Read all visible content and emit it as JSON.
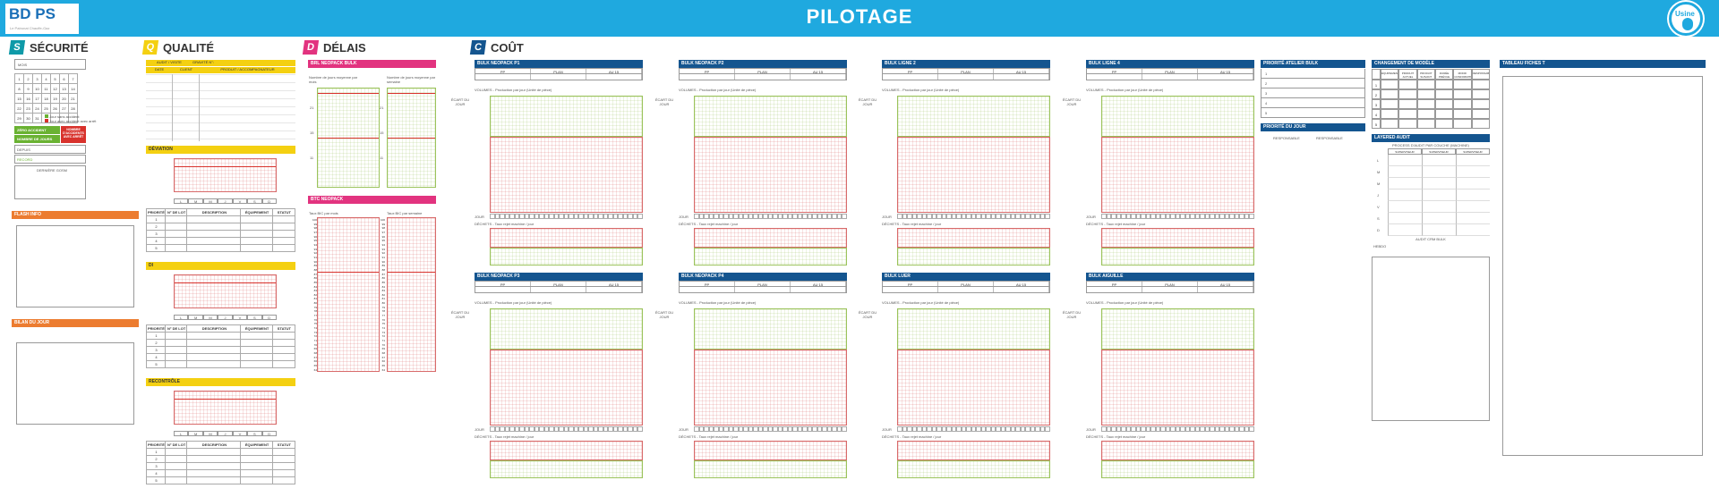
{
  "header": {
    "logo_text": "BD PS",
    "logo_sub": "Le Patronat Chauffe-Gaz",
    "title": "PILOTAGE",
    "usine_label": "Usine"
  },
  "securite": {
    "badge": "S",
    "title": "SÉCURITÉ",
    "color": "#0f9aa8",
    "mois_label": "MOIS",
    "calendar": [
      [
        "1",
        "2",
        "3",
        "4",
        "5",
        "6",
        "7"
      ],
      [
        "8",
        "9",
        "10",
        "11",
        "12",
        "13",
        "14"
      ],
      [
        "15",
        "16",
        "17",
        "18",
        "19",
        "20",
        "21"
      ],
      [
        "22",
        "23",
        "24",
        "25",
        "26",
        "27",
        "28"
      ],
      [
        "29",
        "30",
        "31",
        "",
        "",
        "",
        "",
        ""
      ]
    ],
    "legend": [
      "Jour sans accident",
      "Jour avec accident avec arrêt"
    ],
    "zero_accident": "ZÉRO ACCIDENT",
    "nombre_jours": "NOMBRE DE JOURS",
    "nombre_accidents": "NOMBRE D'ACCIDENTS AVEC ARRÊT",
    "depuis": "DEPUIS",
    "record": "RECORD",
    "derniere": "DERNIÈRE GOSM"
  },
  "flash_info": "FLASH INFO",
  "bilan_jour": "BILAN DU JOUR",
  "qualite": {
    "badge": "Q",
    "title": "QUALITÉ",
    "color": "#f4d011",
    "audit_label": "AUDIT / VISITE",
    "gravite_label": "GRAVITÉ N°:",
    "cols": [
      "DATE",
      "CLIENT",
      "PRODUIT / ACCOMPAGNATEUR"
    ],
    "deviation": "DÉVIATION",
    "di": "DI",
    "recontrole": "RECONTRÔLE",
    "days": [
      "L",
      "M",
      "M",
      "J",
      "V",
      "S",
      "D"
    ],
    "table_cols": [
      "PRIORITÉ",
      "N° DE LOT",
      "DESCRIPTION",
      "ÉQUIPEMENT",
      "STATUT"
    ],
    "rows": [
      "1",
      "2",
      "3",
      "4",
      "5"
    ]
  },
  "delais": {
    "badge": "D",
    "title": "DÉLAIS",
    "color": "#e2337f",
    "brl": "BRL NEOPACK BULK",
    "btc": "BTC NEOPACK",
    "brl_left": "Nombre de jours moyenne par mois",
    "brl_right": "Nombre de jours moyenne par semaine",
    "btc_left": "Taux BIC par mois",
    "btc_right": "Taux BIC par semaine",
    "brl_y": [
      "21",
      "",
      "",
      "",
      "",
      "",
      "",
      "",
      "",
      "",
      "",
      "",
      "",
      "",
      "",
      "",
      "",
      "",
      "",
      "",
      "",
      "",
      "",
      "",
      "",
      "",
      "",
      "",
      "",
      "",
      "15",
      "",
      "",
      "",
      "",
      "",
      "",
      "",
      "",
      "",
      "",
      "",
      "",
      "",
      "11",
      "",
      ""
    ],
    "btc_y": [
      "100",
      "99",
      "98",
      "97",
      "96",
      "95",
      "94",
      "93",
      "92",
      "91",
      "90",
      "89",
      "88",
      "87",
      "86",
      "85",
      "84",
      "83",
      "82",
      "81",
      "80",
      "79",
      "78",
      "77",
      "76",
      "75",
      "74",
      "73",
      "72",
      "71",
      "70",
      "69",
      "68",
      "67",
      "66",
      "65",
      "64"
    ]
  },
  "cout": {
    "badge": "C",
    "title": "COÛT",
    "color": "#14558f",
    "cols": [
      "PP",
      "PLAN",
      "AU 15"
    ],
    "volumes_label": "VOLUMES - Production par jour (Unité de pièce)",
    "ecart_label": "ÉCART DU JOUR",
    "dechets_label": "DÉCHETS - Taux rejet machine / jour",
    "jour_label": "JOUR",
    "panels": [
      {
        "title": "BULK NEOPACK P1"
      },
      {
        "title": "BULK NEOPACK P2"
      },
      {
        "title": "BULK LIGNE 2"
      },
      {
        "title": "BULK LIGNE 4"
      },
      {
        "title": "BULK NEOPACK P3"
      },
      {
        "title": "BULK NEOPACK P4"
      },
      {
        "title": "BULK LUER"
      },
      {
        "title": "BULK AIGUILLE"
      }
    ]
  },
  "priorite_bulk": {
    "title": "PRIORITÉ ATELIER BULK",
    "rows": [
      "1",
      "2",
      "3",
      "4",
      "5"
    ]
  },
  "priorite_jour": {
    "title": "PRIORITÉ DU JOUR",
    "cols": [
      "RESPONSABLE",
      "RESPONSABLE"
    ]
  },
  "changement": {
    "title": "CHANGEMENT DE MODÈLE",
    "cols": [
      "ÉQUIPEMENT",
      "PRODUIT ACTUEL",
      "PRODUIT SUIVANT",
      "DURÉE PRÉVUE",
      "MODIF CONFORMITÉ",
      "RESPONSABLE"
    ],
    "rows": [
      "1",
      "2",
      "3",
      "4",
      "5"
    ]
  },
  "layered": {
    "title": "LAYERED AUDIT",
    "sub": "PROCESS D'AUDIT PAR COUCHE (MACHINE)",
    "cols": [
      "SUPERVISEUR",
      "SUPERVISEUR",
      "SUPERVISEUR"
    ],
    "days": [
      "L",
      "M",
      "M",
      "J",
      "V",
      "S",
      "D"
    ],
    "footer": "AUDIT CRM BULK",
    "hebdo": "HEBDO"
  },
  "tableau": {
    "title": "TABLEAU FICHES T"
  }
}
